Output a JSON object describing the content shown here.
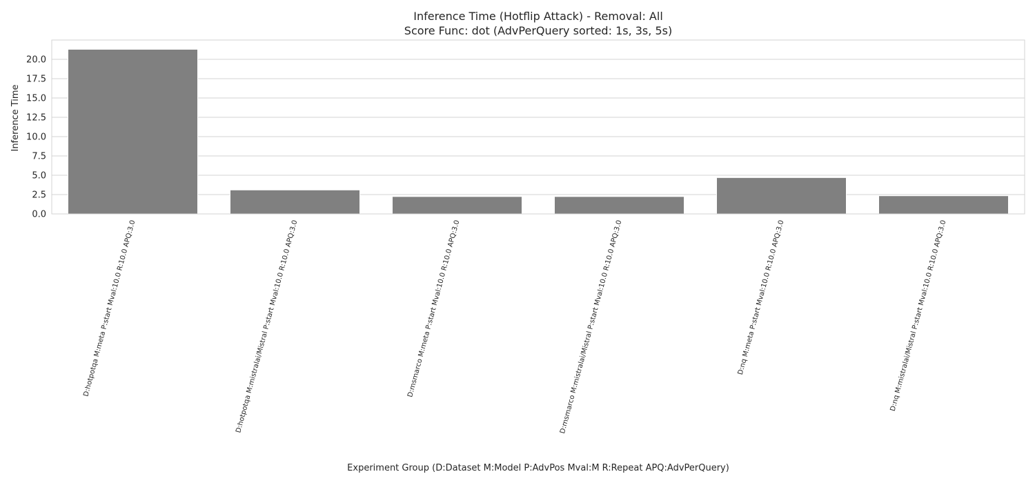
{
  "chart_data": {
    "type": "bar",
    "title": "Inference Time (Hotflip Attack) - Removal: All",
    "subtitle": "Score Func: dot (AdvPerQuery sorted: 1s, 3s, 5s)",
    "xlabel": "Experiment Group (D:Dataset M:Model P:AdvPos Mval:M R:Repeat APQ:AdvPerQuery)",
    "ylabel": "Inference Time",
    "categories": [
      "D:hotpotqa M:meta P:start Mval:10.0 R:10.0 APQ:3.0",
      "D:hotpotqa M:mistralai/Mistral P:start Mval:10.0 R:10.0 APQ:3.0",
      "D:msmarco M:meta P:start Mval:10.0 R:10.0 APQ:3.0",
      "D:msmarco M:mistralai/Mistral P:start Mval:10.0 R:10.0 APQ:3.0",
      "D:nq M:meta P:start Mval:10.0 R:10.0 APQ:3.0",
      "D:nq M:mistralai/Mistral P:start Mval:10.0 R:10.0 APQ:3.0"
    ],
    "values": [
      21.3,
      3.1,
      2.25,
      2.25,
      4.7,
      2.35
    ],
    "ylim": [
      0,
      22.5
    ],
    "yticks": [
      0.0,
      2.5,
      5.0,
      7.5,
      10.0,
      12.5,
      15.0,
      17.5,
      20.0
    ],
    "ytick_labels": [
      "0.0",
      "2.5",
      "5.0",
      "7.5",
      "10.0",
      "12.5",
      "15.0",
      "17.5",
      "20.0"
    ],
    "grid": true,
    "bar_color": "#808080",
    "grid_color": "#d3d3d3"
  }
}
